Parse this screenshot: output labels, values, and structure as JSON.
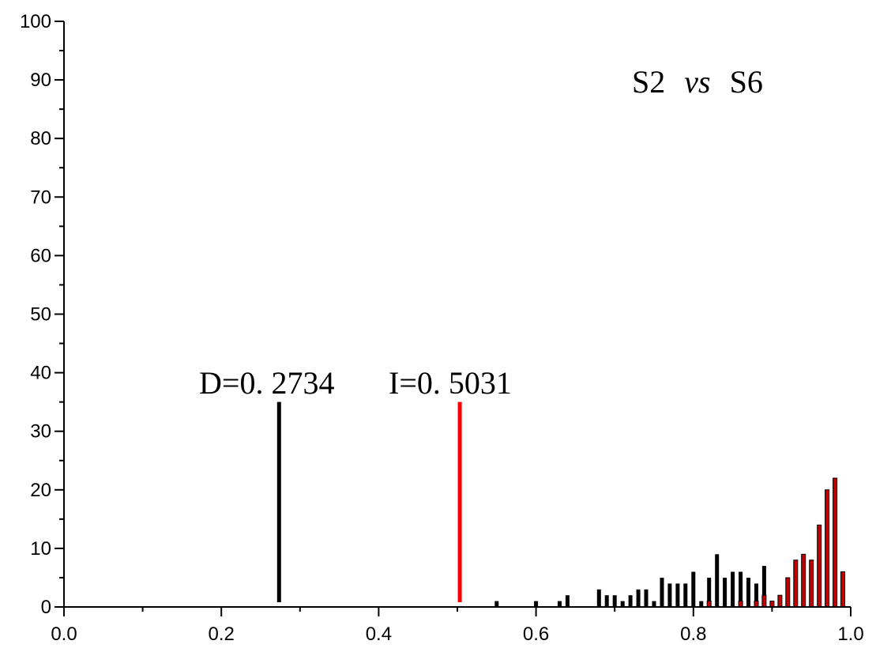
{
  "chart_data": {
    "type": "bar",
    "title": "",
    "xlabel": "",
    "ylabel": "",
    "xlim": [
      0.0,
      1.0
    ],
    "ylim": [
      0,
      100
    ],
    "x_ticks": [
      0.0,
      0.2,
      0.4,
      0.6,
      0.8,
      1.0
    ],
    "x_tick_labels": [
      "0.0",
      "0.2",
      "0.4",
      "0.6",
      "0.8",
      "1.0"
    ],
    "y_ticks": [
      0,
      10,
      20,
      30,
      40,
      50,
      60,
      70,
      80,
      90,
      100
    ],
    "y_tick_labels": [
      "0",
      "10",
      "20",
      "30",
      "40",
      "50",
      "60",
      "70",
      "80",
      "90",
      "100"
    ],
    "grid": false,
    "legend": "none",
    "series": [
      {
        "color": "#000000",
        "x": [
          0.55,
          0.6,
          0.63,
          0.64,
          0.68,
          0.69,
          0.7,
          0.71,
          0.72,
          0.73,
          0.74,
          0.75,
          0.76,
          0.77,
          0.78,
          0.79,
          0.8,
          0.81,
          0.82,
          0.83,
          0.84,
          0.85,
          0.86,
          0.87,
          0.88,
          0.89,
          0.9,
          0.91
        ],
        "values": [
          1,
          1,
          1,
          2,
          3,
          2,
          2,
          1,
          2,
          3,
          3,
          1,
          5,
          4,
          4,
          4,
          6,
          1,
          5,
          9,
          5,
          6,
          6,
          5,
          4,
          7,
          1,
          2
        ]
      },
      {
        "color": "#c00000",
        "x": [
          0.82,
          0.86,
          0.88,
          0.89,
          0.9,
          0.91,
          0.92,
          0.93,
          0.94,
          0.95,
          0.96,
          0.97,
          0.98,
          0.99
        ],
        "values": [
          1,
          1,
          1,
          2,
          1,
          2,
          5,
          8,
          9,
          8,
          14,
          20,
          22,
          6
        ]
      }
    ],
    "reference_lines": [
      {
        "x": 0.2734,
        "y_top": 35,
        "color": "#000000"
      },
      {
        "x": 0.5031,
        "y_top": 35,
        "color": "#ff0000"
      }
    ],
    "annotations": {
      "comparison_left": "S2",
      "comparison_mid": "vs",
      "comparison_right": "S6",
      "d_label": "D=0. 2734",
      "i_label": "I=0. 5031"
    }
  }
}
